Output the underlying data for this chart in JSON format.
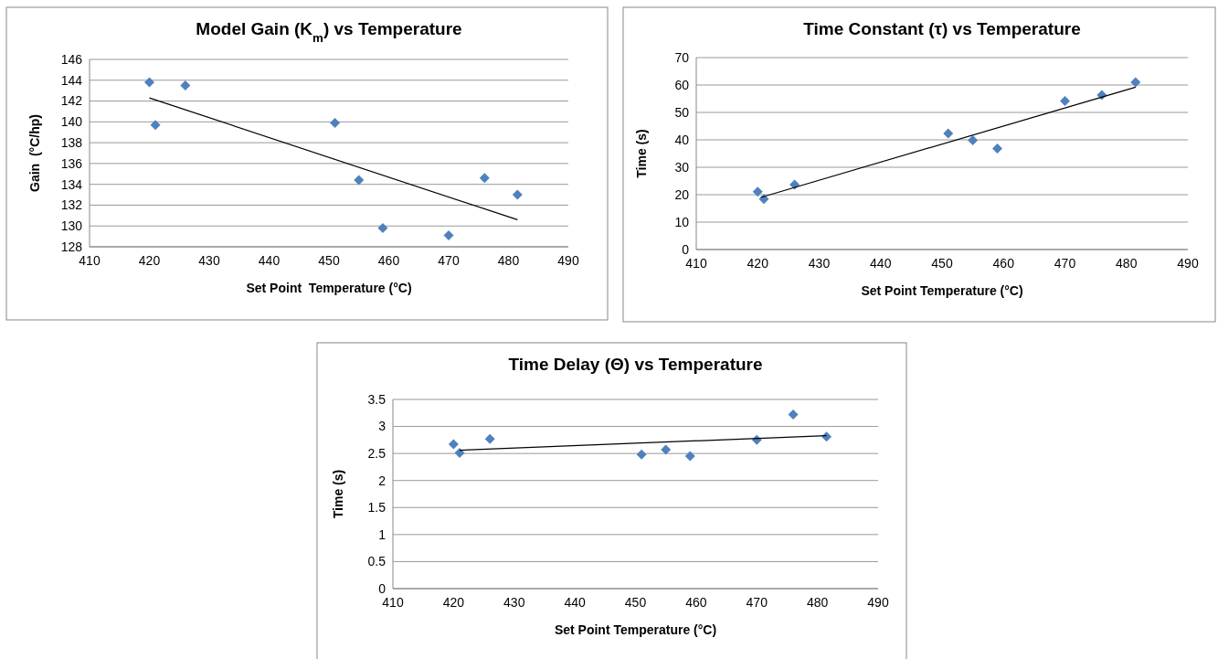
{
  "chart_data": [
    {
      "type": "scatter",
      "title": "Model Gain (K$_{m}$) vs Temperature",
      "xlabel": "Set Point  Temperature (°C)",
      "ylabel": "Gain  (°C/hp)",
      "xlim": [
        410,
        490
      ],
      "xticks": [
        410,
        420,
        430,
        440,
        450,
        460,
        470,
        480,
        490
      ],
      "ylim": [
        128,
        146
      ],
      "yticks": [
        128,
        130,
        132,
        134,
        136,
        138,
        140,
        142,
        144,
        146
      ],
      "grid": "y",
      "x": [
        420,
        421,
        426,
        451,
        455,
        459,
        470,
        476,
        481.5
      ],
      "series": [
        {
          "marker": "diamond",
          "color": "#4f81bd",
          "values": [
            143.8,
            139.7,
            143.5,
            139.9,
            134.4,
            129.8,
            129.1,
            134.6,
            133.0
          ]
        },
        {
          "type": "line",
          "marker": "none",
          "color": "#000000",
          "x": [
            420,
            481.5
          ],
          "values": [
            142.3,
            130.6
          ]
        }
      ]
    },
    {
      "type": "scatter",
      "title": "Time Constant (τ) vs Temperature",
      "xlabel": "Set Point Temperature (°C)",
      "ylabel": "Time (s)",
      "xlim": [
        410,
        490
      ],
      "xticks": [
        410,
        420,
        430,
        440,
        450,
        460,
        470,
        480,
        490
      ],
      "ylim": [
        0,
        70
      ],
      "yticks": [
        0,
        10,
        20,
        30,
        40,
        50,
        60,
        70
      ],
      "grid": "y",
      "x": [
        420,
        421,
        426,
        451,
        455,
        459,
        470,
        476,
        481.5
      ],
      "series": [
        {
          "marker": "diamond",
          "color": "#4f81bd",
          "values": [
            21.1,
            18.4,
            23.7,
            42.3,
            39.8,
            36.8,
            54.2,
            56.3,
            61.0
          ]
        },
        {
          "type": "line",
          "marker": "none",
          "color": "#000000",
          "x": [
            420.5,
            481.5
          ],
          "values": [
            19.0,
            59.2
          ]
        }
      ]
    },
    {
      "type": "scatter",
      "title": "Time Delay (Θ) vs Temperature",
      "xlabel": "Set Point Temperature (°C)",
      "ylabel": "Time (s)",
      "xlim": [
        410,
        490
      ],
      "xticks": [
        410,
        420,
        430,
        440,
        450,
        460,
        470,
        480,
        490
      ],
      "ylim": [
        0,
        3.5
      ],
      "yticks": [
        0,
        0.5,
        1,
        1.5,
        2,
        2.5,
        3,
        3.5
      ],
      "grid": "y",
      "x": [
        420,
        421,
        426,
        451,
        455,
        459,
        470,
        476,
        481.5
      ],
      "series": [
        {
          "marker": "diamond",
          "color": "#4f81bd",
          "values": [
            2.67,
            2.51,
            2.77,
            2.48,
            2.57,
            2.45,
            2.75,
            3.22,
            2.81
          ]
        },
        {
          "type": "line",
          "marker": "none",
          "color": "#000000",
          "x": [
            421,
            481.5
          ],
          "values": [
            2.56,
            2.83
          ]
        }
      ]
    }
  ]
}
